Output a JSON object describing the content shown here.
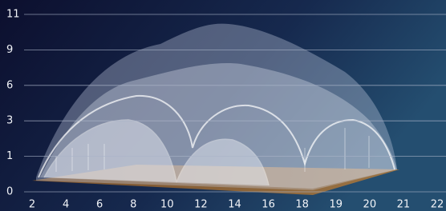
{
  "chart_data": {
    "type": "image",
    "yticks": [
      0,
      1,
      3,
      6,
      9,
      11
    ],
    "xticks": [
      2,
      4,
      6,
      8,
      10,
      12,
      14,
      16,
      18,
      19,
      20,
      21,
      22
    ],
    "grid": true
  }
}
